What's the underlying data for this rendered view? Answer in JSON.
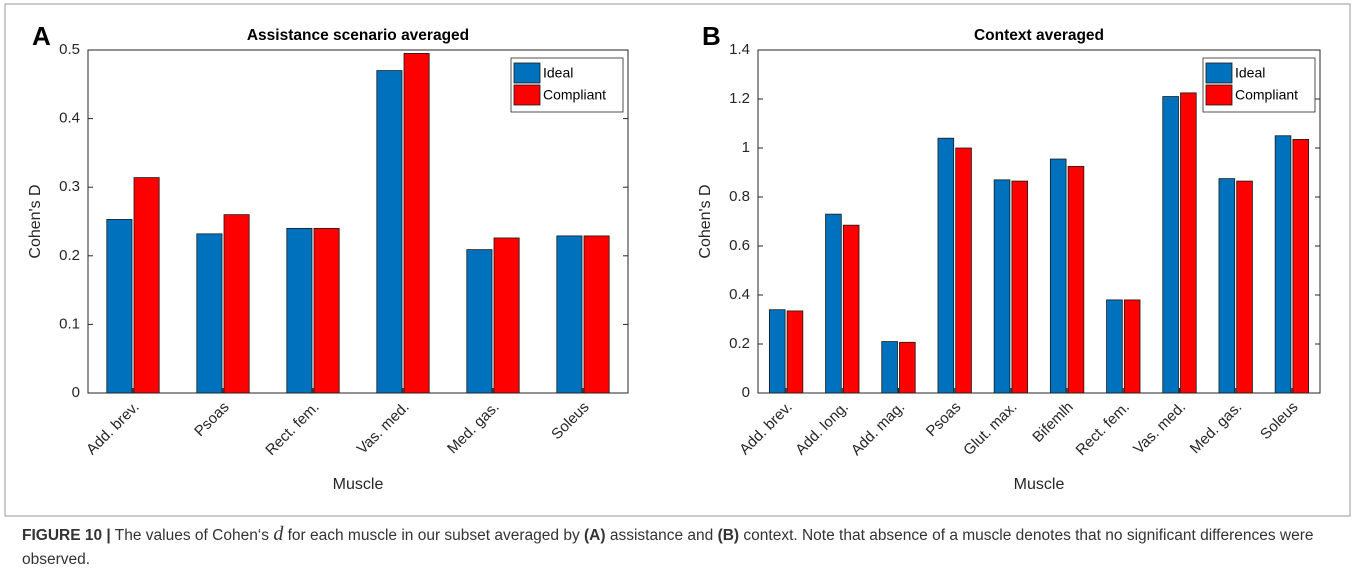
{
  "chart_data": [
    {
      "type": "bar",
      "panel_label": "A",
      "title": "Assistance scenario averaged",
      "x_label": "Muscle",
      "y_label": "Cohen's D",
      "categories": [
        "Add. brev.",
        "Psoas",
        "Rect. fem.",
        "Vas. med.",
        "Med. gas.",
        "Soleus"
      ],
      "series": [
        {
          "name": "Ideal",
          "color": "#0072bd",
          "values": [
            0.253,
            0.232,
            0.24,
            0.47,
            0.209,
            0.229
          ]
        },
        {
          "name": "Compliant",
          "color": "#ff0000",
          "values": [
            0.314,
            0.26,
            0.24,
            0.495,
            0.226,
            0.229
          ]
        }
      ],
      "ylim": [
        0,
        0.5
      ],
      "yticks": [
        0,
        0.1,
        0.2,
        0.3,
        0.4,
        0.5
      ],
      "grid": false,
      "legend": "upper right"
    },
    {
      "type": "bar",
      "panel_label": "B",
      "title": "Context averaged",
      "x_label": "Muscle",
      "y_label": "Cohen's D",
      "categories": [
        "Add. brev.",
        "Add. long.",
        "Add. mag.",
        "Psoas",
        "Glut. max.",
        "Bifemlh",
        "Rect. fem.",
        "Vas. med.",
        "Med. gas.",
        "Soleus"
      ],
      "series": [
        {
          "name": "Ideal",
          "color": "#0072bd",
          "values": [
            0.34,
            0.73,
            0.21,
            1.04,
            0.87,
            0.955,
            0.38,
            1.21,
            0.875,
            1.05
          ]
        },
        {
          "name": "Compliant",
          "color": "#ff0000",
          "values": [
            0.335,
            0.685,
            0.207,
            1.0,
            0.865,
            0.925,
            0.38,
            1.225,
            0.865,
            1.035
          ]
        }
      ],
      "ylim": [
        0,
        1.4
      ],
      "yticks": [
        0,
        0.2,
        0.4,
        0.6,
        0.8,
        1,
        1.2,
        1.4
      ],
      "grid": false,
      "legend": "upper right"
    }
  ],
  "caption": [
    {
      "text": "FIGURE 10 |",
      "style": "bold"
    },
    {
      "text": " The values of Cohen‘s ",
      "style": "normal"
    },
    {
      "text": "d",
      "style": "italic"
    },
    {
      "text": " for each muscle in our subset averaged by ",
      "style": "normal"
    },
    {
      "text": "(A)",
      "style": "bold"
    },
    {
      "text": " assistance and ",
      "style": "normal"
    },
    {
      "text": "(B)",
      "style": "bold"
    },
    {
      "text": " context. Note that absence of a muscle denotes that no significant differences were observed.",
      "style": "normal"
    }
  ]
}
